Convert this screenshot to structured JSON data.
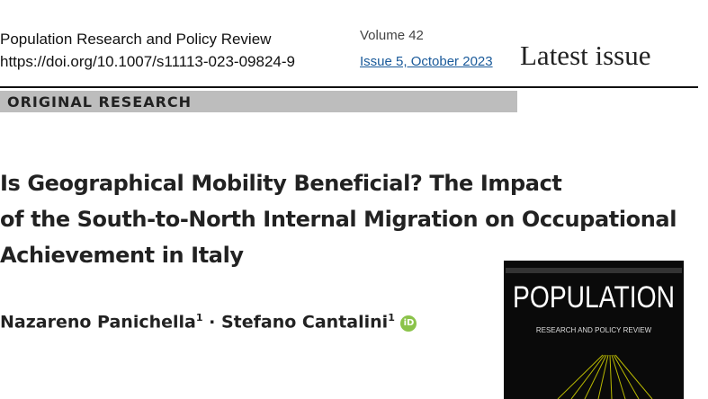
{
  "header": {
    "journal": "Population Research and Policy Review",
    "doi": "https://doi.org/10.1007/s11113-023-09824-9",
    "volume": "Volume 42",
    "issue": "Issue 5, October 2023",
    "latest_issue": "Latest issue"
  },
  "section": "ORIGINAL RESEARCH",
  "title_lines": [
    "Is Geographical Mobility Beneficial? The Impact",
    "of the South-to-North Internal Migration on Occupational",
    "Achievement in Italy"
  ],
  "authors": [
    {
      "name": "Nazareno Panichella",
      "affiliation": "1"
    },
    {
      "name": "Stefano Cantalini",
      "affiliation": "1"
    }
  ],
  "author_separator": "·",
  "orcid_icon": "iD",
  "cover": {
    "title": "POPULATION",
    "subtitle": "RESEARCH AND POLICY REVIEW"
  }
}
